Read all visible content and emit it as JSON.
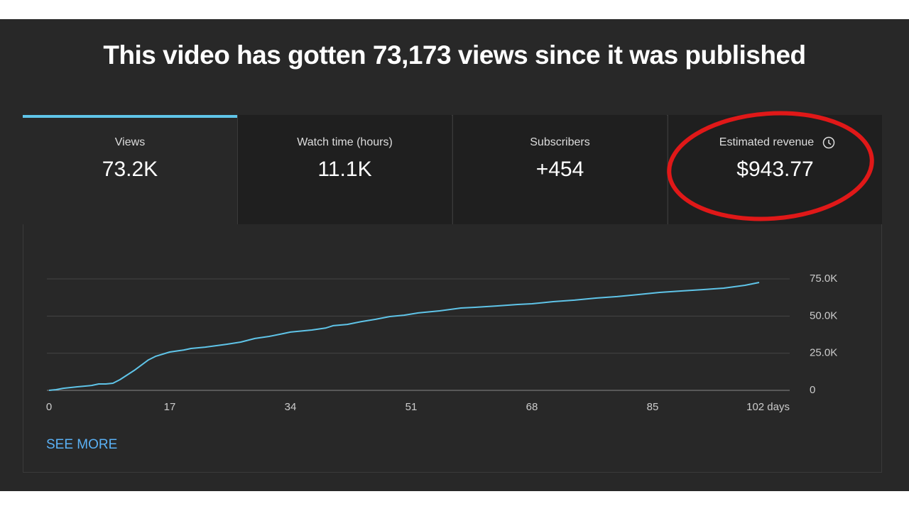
{
  "headline": "This video has gotten 73,173 views since it was published",
  "cards": [
    {
      "label": "Views",
      "value": "73.2K"
    },
    {
      "label": "Watch time (hours)",
      "value": "11.1K"
    },
    {
      "label": "Subscribers",
      "value": "+454"
    },
    {
      "label": "Estimated revenue",
      "value": "$943.77"
    }
  ],
  "chart_data": {
    "type": "line",
    "color": "#5fc4e8",
    "x": [
      0,
      1,
      2,
      4,
      6,
      7,
      8,
      9,
      10,
      12,
      14,
      15,
      17,
      19,
      20,
      22,
      25,
      27,
      29,
      31,
      33,
      34,
      37,
      39,
      40,
      42,
      44,
      46,
      48,
      50,
      52,
      55,
      58,
      60,
      63,
      66,
      68,
      71,
      74,
      77,
      80,
      83,
      86,
      89,
      92,
      95,
      98,
      100
    ],
    "values": [
      0,
      500,
      1400,
      2400,
      3300,
      4300,
      4300,
      4800,
      7200,
      13400,
      20500,
      22900,
      25800,
      27200,
      28200,
      29100,
      31000,
      32500,
      34900,
      36300,
      38200,
      39200,
      40600,
      42000,
      43500,
      44400,
      46300,
      47800,
      49700,
      50600,
      52100,
      53500,
      55400,
      55900,
      56800,
      57800,
      58300,
      59700,
      60700,
      62100,
      63100,
      64500,
      65900,
      66900,
      67800,
      68800,
      70700,
      72600
    ],
    "xlim": [
      0,
      102
    ],
    "xticks": [
      0,
      17,
      34,
      51,
      68,
      85,
      {
        "value": 102,
        "label": "102 days"
      }
    ],
    "ylim": [
      0,
      75000
    ],
    "yticks": [
      0,
      {
        "value": 25000,
        "label": "25.0K"
      },
      {
        "value": 50000,
        "label": "50.0K"
      },
      {
        "value": 75000,
        "label": "75.0K"
      }
    ],
    "grid": true
  },
  "link": "SEE MORE"
}
